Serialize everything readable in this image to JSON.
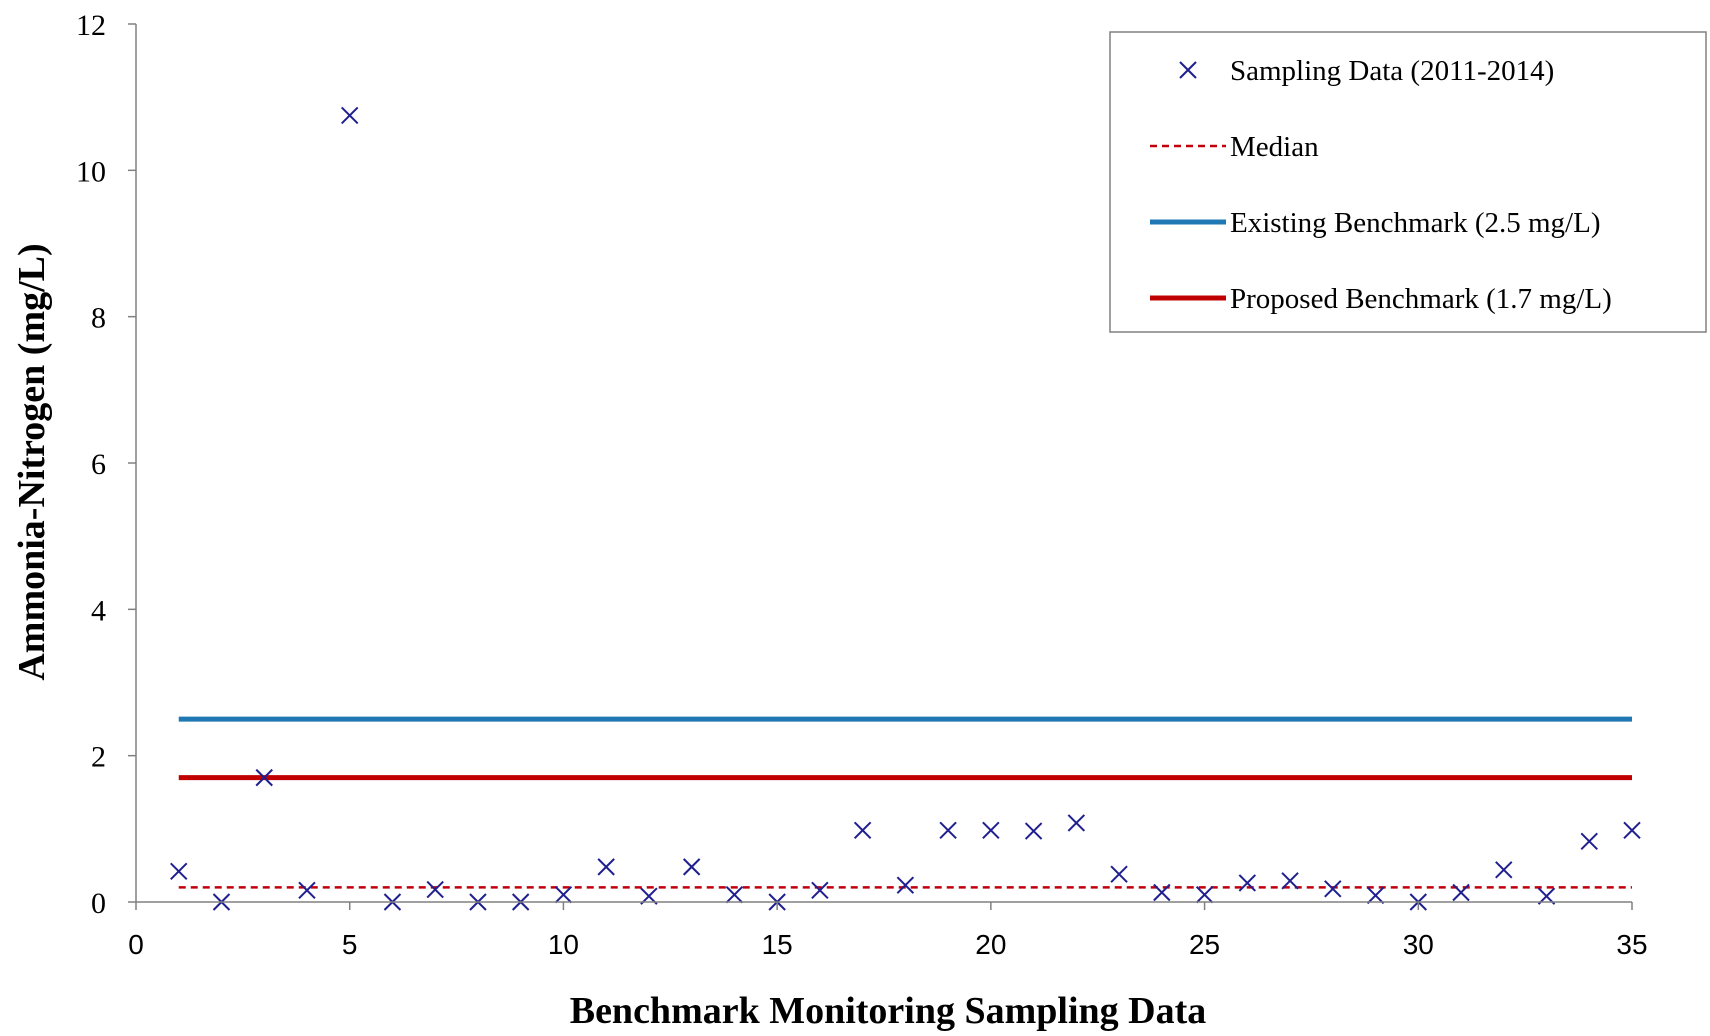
{
  "chart_data": {
    "type": "scatter",
    "title": "",
    "xlabel": "Benchmark Monitoring Sampling Data",
    "ylabel": "Ammonia-Nitrogen (mg/L)",
    "xlim": [
      0,
      35
    ],
    "ylim": [
      0,
      12
    ],
    "x_ticks": [
      0,
      5,
      10,
      15,
      20,
      25,
      30,
      35
    ],
    "y_ticks": [
      0,
      2,
      4,
      6,
      8,
      10,
      12
    ],
    "grid": false,
    "legend_position": "top-right",
    "series": [
      {
        "name": "Sampling Data (2011-2014)",
        "type": "scatter",
        "marker": "x",
        "color": "#1F1F8F",
        "x": [
          1,
          2,
          3,
          4,
          5,
          6,
          7,
          8,
          9,
          10,
          11,
          12,
          13,
          14,
          15,
          16,
          17,
          18,
          19,
          20,
          21,
          22,
          23,
          24,
          25,
          26,
          27,
          28,
          29,
          30,
          31,
          32,
          33,
          34,
          35
        ],
        "y": [
          0.42,
          0.0,
          1.7,
          0.16,
          10.75,
          0.0,
          0.17,
          0.0,
          0.0,
          0.1,
          0.48,
          0.08,
          0.48,
          0.1,
          0.0,
          0.16,
          0.98,
          0.23,
          0.98,
          0.98,
          0.97,
          1.08,
          0.38,
          0.13,
          0.1,
          0.26,
          0.29,
          0.18,
          0.09,
          0.0,
          0.13,
          0.44,
          0.08,
          0.83,
          0.98
        ]
      },
      {
        "name": "Median",
        "type": "line",
        "style": "dashed",
        "color": "#C0000C",
        "x": [
          1,
          35
        ],
        "y": [
          0.2,
          0.2
        ]
      },
      {
        "name": "Existing Benchmark (2.5 mg/L)",
        "type": "line",
        "style": "solid",
        "color": "#1F77B4",
        "x": [
          1,
          35
        ],
        "y": [
          2.5,
          2.5
        ]
      },
      {
        "name": "Proposed Benchmark (1.7 mg/L)",
        "type": "line",
        "style": "solid",
        "color": "#C00000",
        "x": [
          1,
          35
        ],
        "y": [
          1.7,
          1.7
        ]
      }
    ]
  }
}
